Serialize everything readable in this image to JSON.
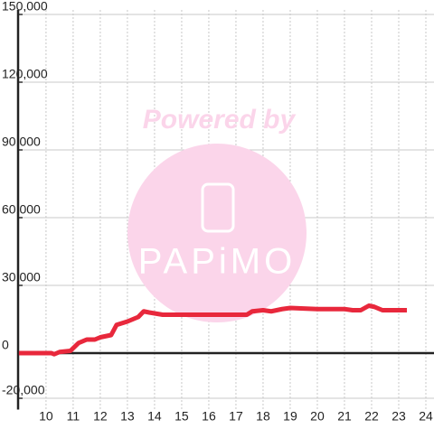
{
  "chart_data": {
    "type": "line",
    "watermark": {
      "text": "Powered by",
      "logo": "PAPiMO"
    },
    "x": [
      9.0,
      10.2,
      10.3,
      10.5,
      10.9,
      11.2,
      11.5,
      11.8,
      12.0,
      12.4,
      12.6,
      13.0,
      13.4,
      13.6,
      13.8,
      14.3,
      15.0,
      16.0,
      17.0,
      17.4,
      17.6,
      18.0,
      18.3,
      18.7,
      19.0,
      20.0,
      21.0,
      21.3,
      21.6,
      21.9,
      22.1,
      22.4,
      23.3
    ],
    "series": [
      {
        "name": null,
        "color": "#e8283c",
        "values": [
          0,
          0,
          -500,
          500,
          1000,
          4500,
          6000,
          6000,
          7000,
          8000,
          12500,
          14000,
          16000,
          18500,
          18000,
          17000,
          17000,
          17000,
          17000,
          17000,
          18500,
          19000,
          18500,
          19500,
          20000,
          19500,
          19500,
          19000,
          19000,
          21000,
          20500,
          19000,
          19000
        ]
      }
    ],
    "xlim": [
      8.97,
      24.3
    ],
    "xticks": [
      10,
      11,
      12,
      13,
      14,
      15,
      16,
      17,
      18,
      19,
      20,
      21,
      22,
      23,
      24
    ],
    "ylim": [
      -25000,
      152000
    ],
    "yticks": [
      {
        "value": -20000,
        "label": "-20,000"
      },
      0,
      {
        "value": 30000,
        "label": "30,000"
      },
      {
        "value": 60000,
        "label": "60,000"
      },
      {
        "value": 90000,
        "label": "90,000"
      },
      {
        "value": 120000,
        "label": "120,000"
      },
      {
        "value": 150000,
        "label": "150,000"
      }
    ],
    "grid": true
  }
}
